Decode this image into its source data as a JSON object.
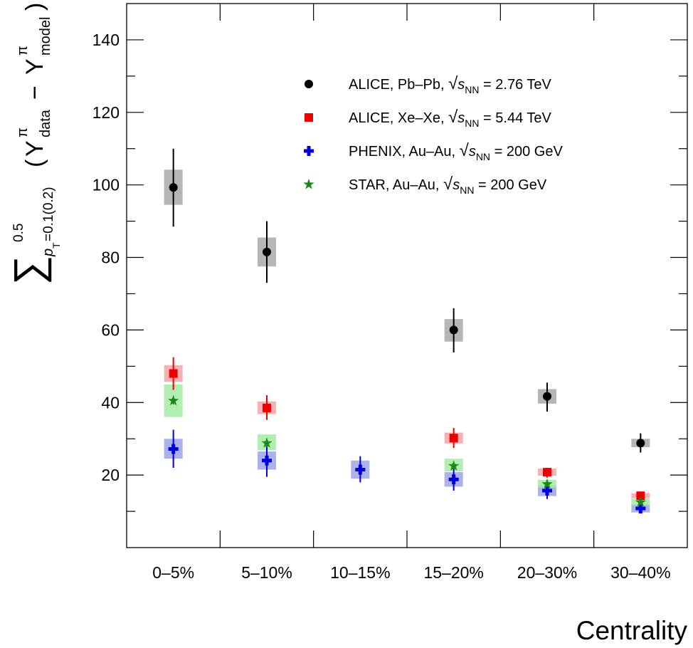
{
  "chart_data": {
    "type": "scatter",
    "title": "",
    "xlabel": "Centrality",
    "ylabel": "∑ (Y^π_data − Y^π_model), p_T = 0.1(0.2) to 0.5",
    "ylabel_parts": {
      "sum": "∑",
      "upper": "0.5",
      "lower_p": "p",
      "lower_T": "T",
      "lower_rest": "=0.1(0.2)",
      "open_paren": "(",
      "Y1": "Y",
      "pi1": "π",
      "sub1": "data",
      "minus": "−",
      "Y2": "Y",
      "pi2": "π",
      "sub2": "model",
      "close_paren": ")"
    },
    "categories": [
      "0–5%",
      "5–10%",
      "10–15%",
      "15–20%",
      "20–30%",
      "30–40%"
    ],
    "ylim": [
      0,
      150
    ],
    "yticks": [
      20,
      40,
      60,
      80,
      100,
      120,
      140
    ],
    "legend_position": "upper-right",
    "series": [
      {
        "name": "ALICE, Pb–Pb",
        "label_prefix": "ALICE, Pb–Pb,",
        "energy": "= 2.76 TeV",
        "marker": "circle",
        "color": "#000000",
        "sys_color": "#a9a9a9",
        "points": [
          {
            "category": "0–5%",
            "y": 99.3,
            "stat": [
              88.5,
              110.0
            ],
            "sys": [
              94.5,
              104.2
            ]
          },
          {
            "category": "5–10%",
            "y": 81.5,
            "stat": [
              73.0,
              90.0
            ],
            "sys": [
              77.5,
              85.5
            ]
          },
          {
            "category": "15–20%",
            "y": 60.0,
            "stat": [
              53.8,
              66.0
            ],
            "sys": [
              56.8,
              63.0
            ]
          },
          {
            "category": "20–30%",
            "y": 41.7,
            "stat": [
              37.5,
              45.5
            ],
            "sys": [
              39.7,
              43.7
            ]
          },
          {
            "category": "30–40%",
            "y": 28.8,
            "stat": [
              26.2,
              31.5
            ],
            "sys": [
              27.7,
              30.0
            ]
          }
        ]
      },
      {
        "name": "ALICE, Xe–Xe",
        "label_prefix": "ALICE, Xe–Xe,",
        "energy": "= 5.44 TeV",
        "marker": "square",
        "color": "#ee0000",
        "sys_color": "#f4a5a5",
        "points": [
          {
            "category": "0–5%",
            "y": 48.0,
            "stat": [
              43.5,
              52.5
            ],
            "sys": [
              45.7,
              50.3
            ]
          },
          {
            "category": "5–10%",
            "y": 38.5,
            "stat": [
              35.2,
              42.0
            ],
            "sys": [
              36.8,
              40.3
            ]
          },
          {
            "category": "15–20%",
            "y": 30.2,
            "stat": [
              27.5,
              33.0
            ],
            "sys": [
              28.7,
              31.7
            ]
          },
          {
            "category": "20–30%",
            "y": 20.8,
            "stat": [
              19.3,
              22.0
            ],
            "sys": [
              19.8,
              21.8
            ]
          },
          {
            "category": "30–40%",
            "y": 14.3,
            "stat": [
              13.5,
              15.2
            ],
            "sys": [
              13.6,
              15.0
            ]
          }
        ]
      },
      {
        "name": "PHENIX, Au–Au",
        "label_prefix": "PHENIX, Au–Au,",
        "energy": "= 200 GeV",
        "marker": "cross",
        "color": "#0000dd",
        "sys_color": "#9ea5e8",
        "points": [
          {
            "category": "0–5%",
            "y": 27.2,
            "stat": [
              22.0,
              32.5
            ],
            "sys": [
              24.5,
              30.0
            ]
          },
          {
            "category": "5–10%",
            "y": 24.0,
            "stat": [
              19.5,
              28.5
            ],
            "sys": [
              21.5,
              26.5
            ]
          },
          {
            "category": "10–15%",
            "y": 21.5,
            "stat": [
              18.0,
              25.2
            ],
            "sys": [
              19.0,
              24.0
            ]
          },
          {
            "category": "15–20%",
            "y": 18.8,
            "stat": [
              15.7,
              21.9
            ],
            "sys": [
              16.8,
              20.8
            ]
          },
          {
            "category": "20–30%",
            "y": 15.7,
            "stat": [
              13.4,
              18.2
            ],
            "sys": [
              14.2,
              17.2
            ]
          },
          {
            "category": "30–40%",
            "y": 10.8,
            "stat": [
              9.6,
              12.0
            ],
            "sys": [
              9.7,
              11.9
            ]
          }
        ]
      },
      {
        "name": "STAR, Au–Au",
        "label_prefix": "STAR, Au–Au,",
        "energy": "= 200 GeV",
        "marker": "star",
        "color": "#1a8a1a",
        "sys_color": "#a5eaa5",
        "points": [
          {
            "category": "0–5%",
            "y": 40.5,
            "stat": [
              39.5,
              41.5
            ],
            "sys": [
              36.0,
              45.0
            ]
          },
          {
            "category": "5–10%",
            "y": 28.8,
            "stat": [
              27.8,
              29.8
            ],
            "sys": [
              26.8,
              31.2
            ]
          },
          {
            "category": "15–20%",
            "y": 22.5,
            "stat": [
              21.7,
              23.3
            ],
            "sys": [
              21.0,
              24.5
            ]
          },
          {
            "category": "20–30%",
            "y": 17.5,
            "stat": [
              16.9,
              18.1
            ],
            "sys": [
              16.5,
              18.7
            ]
          },
          {
            "category": "30–40%",
            "y": 12.5,
            "stat": [
              12.0,
              13.0
            ],
            "sys": [
              11.7,
              13.5
            ]
          }
        ]
      }
    ],
    "legend_sqrt_symbol": "√",
    "legend_s": "s",
    "legend_nn": "NN"
  }
}
